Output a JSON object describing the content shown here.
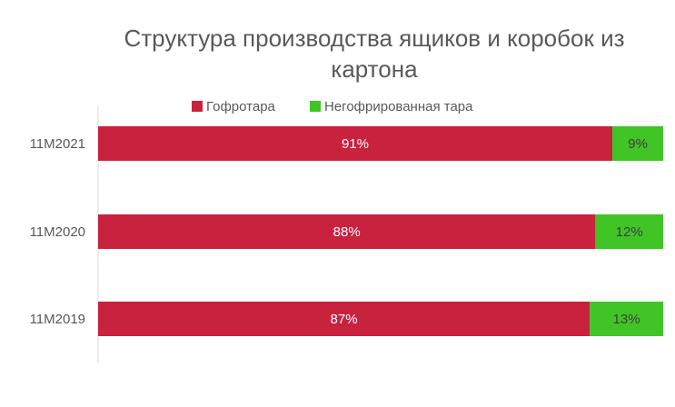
{
  "chart_data": {
    "type": "bar",
    "orientation": "horizontal",
    "stacked": true,
    "stack_mode": "percent",
    "title": "Структура производства ящиков и коробок из картона",
    "categories": [
      "11M2021",
      "11M2020",
      "11M2019"
    ],
    "series": [
      {
        "name": "Гофротара",
        "values": [
          91,
          88,
          87
        ],
        "color": "#C8223F"
      },
      {
        "name": "Негофрированная тара",
        "values": [
          9,
          12,
          13
        ],
        "color": "#40C426"
      }
    ],
    "value_suffix": "%",
    "xlim": [
      0,
      100
    ],
    "legend_position": "top",
    "grid": false
  }
}
